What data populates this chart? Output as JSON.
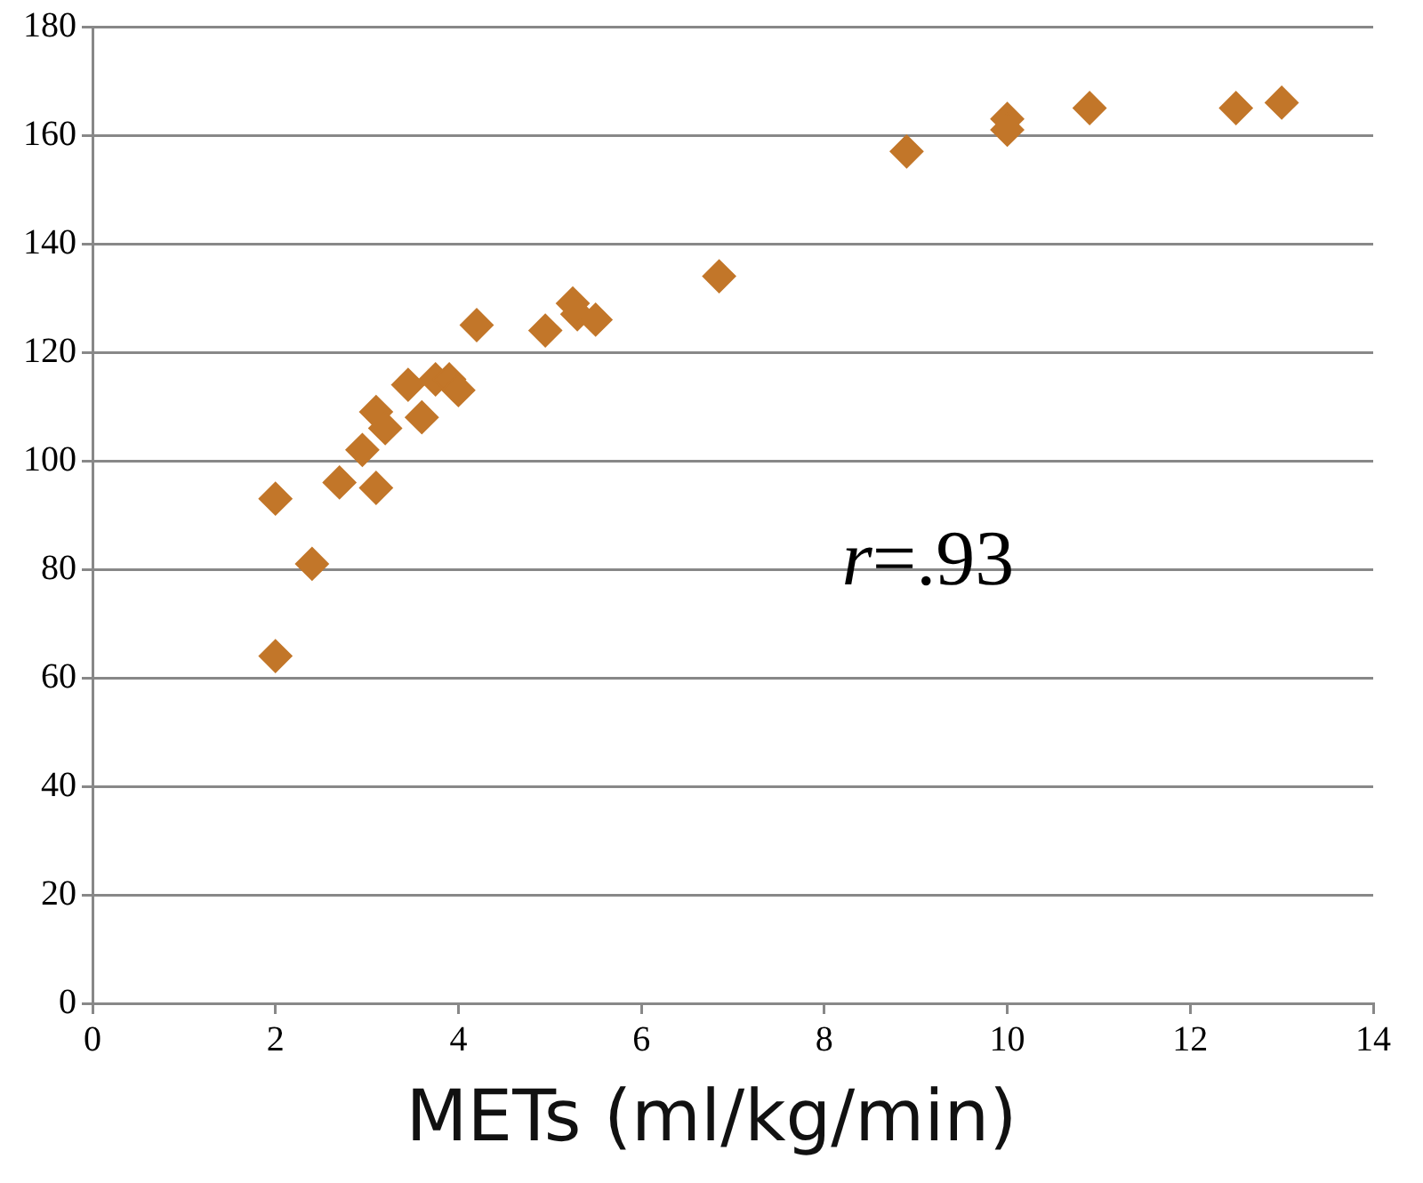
{
  "chart_data": {
    "type": "scatter",
    "xlabel": "METs (ml/kg/min)",
    "x": [
      2,
      2,
      2.4,
      2.7,
      2.95,
      3.1,
      3.1,
      3.2,
      3.45,
      3.6,
      3.75,
      3.9,
      4.0,
      4.2,
      4.95,
      5.25,
      5.3,
      5.5,
      6.85,
      8.9,
      10,
      10,
      10.9,
      12.5,
      13
    ],
    "series": [
      {
        "color": "#c27629",
        "values": [
          64,
          93,
          81,
          96,
          102,
          109,
          95,
          106,
          114,
          108,
          115,
          115,
          113,
          125,
          124,
          129,
          127,
          126,
          134,
          157,
          163,
          161,
          165,
          165,
          166
        ]
      }
    ],
    "xlim": [
      0,
      14
    ],
    "xticks": [
      0,
      2,
      4,
      6,
      8,
      10,
      12,
      14
    ],
    "ylim": [
      0,
      180
    ],
    "yticks": [
      0,
      20,
      40,
      60,
      80,
      100,
      120,
      140,
      160,
      180
    ],
    "grid": "y",
    "legend": false,
    "marker": "diamond",
    "annotations": [
      "r=.93"
    ]
  }
}
